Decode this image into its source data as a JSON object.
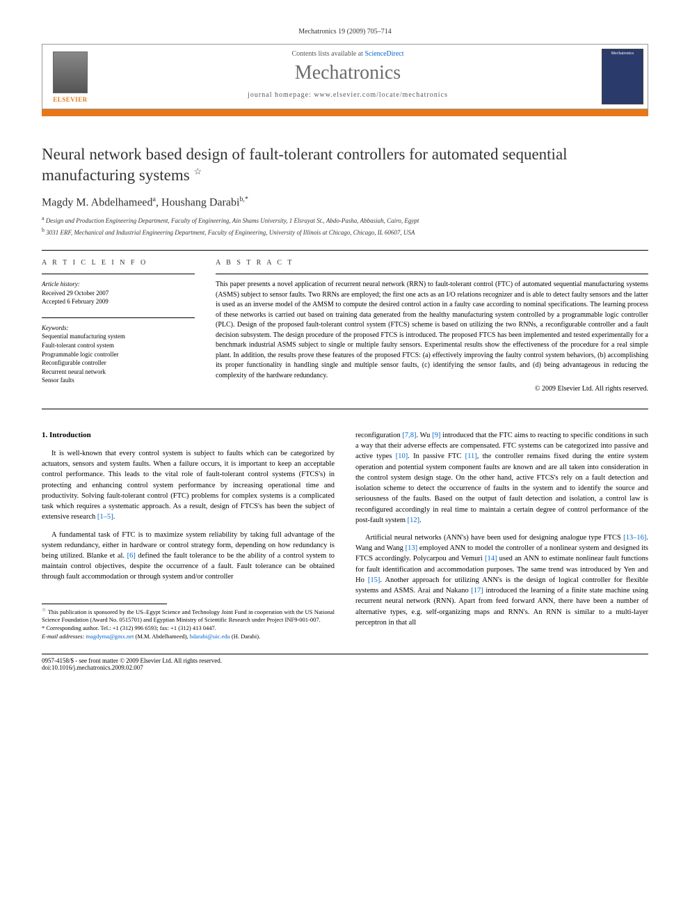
{
  "journal_ref": "Mechatronics 19 (2009) 705–714",
  "header": {
    "contents_prefix": "Contents lists available at ",
    "contents_link": "ScienceDirect",
    "journal": "Mechatronics",
    "homepage": "journal homepage: www.elsevier.com/locate/mechatronics",
    "publisher_logo": "ELSEVIER",
    "thumb_label": "Mechatronics"
  },
  "title": "Neural network based design of fault-tolerant controllers for automated sequential manufacturing systems",
  "title_note": "☆",
  "authors": [
    {
      "name": "Magdy M. Abdelhameed",
      "marker": "a"
    },
    {
      "name": "Houshang Darabi",
      "marker": "b,*"
    }
  ],
  "affiliations": [
    {
      "marker": "a",
      "text": "Design and Production Engineering Department, Faculty of Engineering, Ain Shams University, 1 Elsrayat St., Abdo-Pasha, Abbasiah, Cairo, Egypt"
    },
    {
      "marker": "b",
      "text": "3031 ERF, Mechanical and Industrial Engineering Department, Faculty of Engineering, University of Illinois at Chicago, Chicago, IL 60607, USA"
    }
  ],
  "article_info": {
    "heading": "A R T I C L E   I N F O",
    "history_label": "Article history:",
    "received": "Received 29 October 2007",
    "accepted": "Accepted 6 February 2009",
    "keywords_label": "Keywords:",
    "keywords": [
      "Sequential manufacturing system",
      "Fault-tolerant control system",
      "Programmable logic controller",
      "Reconfigurable controller",
      "Recurrent neural network",
      "Sensor faults"
    ]
  },
  "abstract": {
    "heading": "A B S T R A C T",
    "text": "This paper presents a novel application of recurrent neural network (RRN) to fault-tolerant control (FTC) of automated sequential manufacturing systems (ASMS) subject to sensor faults. Two RRNs are employed; the first one acts as an I/O relations recognizer and is able to detect faulty sensors and the latter is used as an inverse model of the AMSM to compute the desired control action in a faulty case according to nominal specifications. The learning process of these networks is carried out based on training data generated from the healthy manufacturing system controlled by a programmable logic controller (PLC). Design of the proposed fault-tolerant control system (FTCS) scheme is based on utilizing the two RNNs, a reconfigurable controller and a fault decision subsystem. The design procedure of the proposed FTCS is introduced. The proposed FTCS has been implemented and tested experimentally for a benchmark industrial ASMS subject to single or multiple faulty sensors. Experimental results show the effectiveness of the procedure for a real simple plant. In addition, the results prove these features of the proposed FTCS: (a) effectively improving the faulty control system behaviors, (b) accomplishing its proper functionality in handling single and multiple sensor faults, (c) identifying the sensor faults, and (d) being advantageous in reducing the complexity of the hardware redundancy.",
    "copyright": "© 2009 Elsevier Ltd. All rights reserved."
  },
  "body": {
    "section_heading": "1. Introduction",
    "left_paragraphs": [
      "It is well-known that every control system is subject to faults which can be categorized by actuators, sensors and system faults. When a failure occurs, it is important to keep an acceptable control performance. This leads to the vital role of fault-tolerant control systems (FTCS's) in protecting and enhancing control system performance by increasing operational time and productivity. Solving fault-tolerant control (FTC) problems for complex systems is a complicated task which requires a systematic approach. As a result, design of FTCS's has been the subject of extensive research [1–5].",
      "A fundamental task of FTC is to maximize system reliability by taking full advantage of the system redundancy, either in hardware or control strategy form, depending on how redundancy is being utilized. Blanke et al. [6] defined the fault tolerance to be the ability of a control system to maintain control objectives, despite the occurrence of a fault. Fault tolerance can be obtained through fault accommodation or through system and/or controller"
    ],
    "right_paragraphs": [
      "reconfiguration [7,8]. Wu [9] introduced that the FTC aims to reacting to specific conditions in such a way that their adverse effects are compensated. FTC systems can be categorized into passive and active types [10]. In passive FTC [11], the controller remains fixed during the entire system operation and potential system component faults are known and are all taken into consideration in the control system design stage. On the other hand, active FTCS's rely on a fault detection and isolation scheme to detect the occurrence of faults in the system and to identify the source and seriousness of the faults. Based on the output of fault detection and isolation, a control law is reconfigured accordingly in real time to maintain a certain degree of control performance of the post-fault system [12].",
      "Artificial neural networks (ANN's) have been used for designing analogue type FTCS [13–16]. Wang and Wang [13] employed ANN to model the controller of a nonlinear system and designed its FTCS accordingly. Polycarpou and Vemuri [14] used an ANN to estimate nonlinear fault functions for fault identification and accommodation purposes. The same trend was introduced by Yen and Ho [15]. Another approach for utilizing ANN's is the design of logical controller for flexible systems and ASMS. Arai and Nakano [17] introduced the learning of a finite state machine using recurrent neural network (RNN). Apart from feed forward ANN, there have been a number of alternative types, e.g. self-organizing maps and RNN's. An RNN is similar to a multi-layer perceptron in that all"
    ],
    "ref_links_left": [
      "[1–5]",
      "[6]"
    ],
    "ref_links_right": [
      "[7,8]",
      "[9]",
      "[10]",
      "[11]",
      "[12]",
      "[13–16]",
      "[13]",
      "[14]",
      "[15]",
      "[17]"
    ]
  },
  "footnotes": {
    "sponsor_marker": "☆",
    "sponsor": "This publication is sponsored by the US–Egypt Science and Technology Joint Fund in cooperation with the US National Science Foundation (Award No. 0515701) and Egyptian Ministry of Scientific Research under Project INF9-001-007.",
    "corresponding_marker": "*",
    "corresponding": "Corresponding author. Tel.: +1 (312) 996 6593; fax: +1 (312) 413 0447.",
    "email_label": "E-mail addresses:",
    "email1": "magdyma@gmx.net",
    "email1_owner": "(M.M. Abdelhameed),",
    "email2": "hdarabi@uic.edu",
    "email2_owner": "(H. Darabi)."
  },
  "footer": {
    "left": "0957-4158/$ - see front matter © 2009 Elsevier Ltd. All rights reserved.",
    "doi": "doi:10.1016/j.mechatronics.2009.02.007"
  }
}
